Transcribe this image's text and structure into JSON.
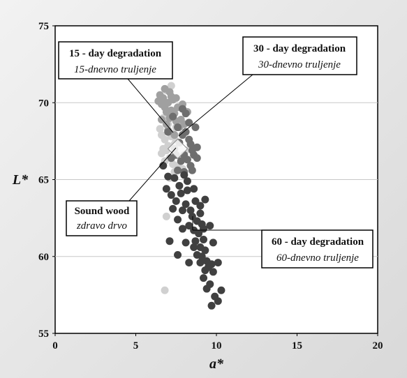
{
  "chart_data": {
    "type": "scatter",
    "xlabel": "a*",
    "ylabel": "L*",
    "xlim": [
      0,
      20
    ],
    "ylim": [
      55,
      75
    ],
    "xticks": [
      "0",
      "5",
      "10",
      "15",
      "20"
    ],
    "yticks": [
      "55",
      "60",
      "65",
      "70",
      "75"
    ],
    "grid": "horizontal",
    "series": [
      {
        "color": "#d0d0d0",
        "points": [
          [
            6.8,
            67.6
          ],
          [
            7.0,
            67.2
          ],
          [
            7.3,
            68.0
          ],
          [
            6.6,
            67.9
          ],
          [
            7.5,
            67.5
          ],
          [
            6.9,
            66.9
          ],
          [
            7.1,
            66.4
          ],
          [
            7.4,
            65.5
          ],
          [
            6.7,
            67.0
          ],
          [
            7.6,
            66.8
          ],
          [
            7.2,
            67.8
          ],
          [
            6.5,
            68.3
          ],
          [
            7.8,
            66.6
          ],
          [
            7.0,
            68.6
          ],
          [
            7.7,
            67.1
          ],
          [
            6.8,
            66.2
          ],
          [
            7.9,
            65.7
          ],
          [
            7.3,
            66.0
          ],
          [
            6.6,
            66.7
          ],
          [
            7.5,
            68.4
          ],
          [
            8.1,
            66.9
          ],
          [
            6.9,
            62.6
          ],
          [
            6.8,
            57.8
          ],
          [
            7.1,
            65.1
          ],
          [
            7.4,
            67.3
          ],
          [
            6.7,
            69.0
          ],
          [
            7.2,
            71.1
          ],
          [
            6.9,
            70.8
          ],
          [
            7.6,
            65.9
          ],
          [
            8.0,
            66.4
          ]
        ]
      },
      {
        "color": "#a0a0a0",
        "points": [
          [
            6.5,
            70.5
          ],
          [
            6.7,
            70.3
          ],
          [
            7.0,
            70.0
          ],
          [
            7.2,
            69.5
          ],
          [
            6.8,
            69.7
          ],
          [
            7.4,
            69.3
          ],
          [
            6.6,
            69.9
          ],
          [
            7.1,
            69.0
          ],
          [
            7.5,
            68.8
          ],
          [
            6.9,
            68.6
          ],
          [
            7.3,
            70.2
          ],
          [
            7.6,
            69.7
          ],
          [
            7.8,
            68.9
          ],
          [
            6.4,
            70.1
          ],
          [
            7.0,
            68.2
          ],
          [
            7.7,
            68.4
          ],
          [
            7.2,
            70.4
          ],
          [
            6.6,
            68.9
          ],
          [
            8.0,
            68.6
          ],
          [
            7.9,
            69.9
          ],
          [
            7.4,
            67.9
          ],
          [
            6.8,
            70.9
          ],
          [
            7.1,
            70.7
          ],
          [
            8.2,
            69.4
          ],
          [
            7.5,
            70.3
          ],
          [
            6.9,
            69.4
          ]
        ]
      },
      {
        "color": "#6e6e6e",
        "points": [
          [
            7.3,
            69.1
          ],
          [
            7.6,
            68.4
          ],
          [
            7.9,
            67.9
          ],
          [
            8.1,
            68.1
          ],
          [
            7.7,
            67.4
          ],
          [
            8.3,
            67.6
          ],
          [
            7.4,
            67.0
          ],
          [
            8.0,
            66.6
          ],
          [
            8.5,
            66.9
          ],
          [
            7.8,
            66.2
          ],
          [
            8.2,
            66.3
          ],
          [
            8.6,
            66.6
          ],
          [
            7.5,
            66.6
          ],
          [
            8.4,
            67.3
          ],
          [
            8.8,
            67.1
          ],
          [
            8.0,
            65.5
          ],
          [
            8.4,
            65.9
          ],
          [
            7.2,
            66.4
          ],
          [
            8.7,
            68.4
          ],
          [
            8.3,
            68.7
          ],
          [
            8.1,
            69.3
          ],
          [
            7.9,
            69.6
          ],
          [
            7.0,
            68.1
          ],
          [
            8.8,
            66.4
          ],
          [
            7.6,
            65.6
          ],
          [
            8.5,
            65.6
          ]
        ]
      },
      {
        "color": "#404040",
        "points": [
          [
            6.9,
            64.4
          ],
          [
            7.2,
            64.0
          ],
          [
            7.5,
            63.6
          ],
          [
            7.8,
            64.1
          ],
          [
            8.1,
            63.4
          ],
          [
            8.4,
            63.0
          ],
          [
            8.7,
            63.6
          ],
          [
            9.0,
            63.3
          ],
          [
            8.5,
            62.6
          ],
          [
            8.8,
            62.3
          ],
          [
            9.1,
            62.1
          ],
          [
            8.6,
            61.7
          ],
          [
            8.9,
            61.5
          ],
          [
            9.2,
            61.1
          ],
          [
            8.7,
            61.0
          ],
          [
            9.0,
            60.6
          ],
          [
            9.3,
            60.4
          ],
          [
            8.8,
            60.1
          ],
          [
            9.1,
            60.0
          ],
          [
            9.4,
            59.7
          ],
          [
            9.7,
            59.5
          ],
          [
            9.5,
            59.3
          ],
          [
            9.0,
            59.6
          ],
          [
            9.3,
            59.1
          ],
          [
            9.8,
            59.0
          ],
          [
            10.1,
            59.6
          ],
          [
            9.2,
            58.6
          ],
          [
            9.6,
            58.2
          ],
          [
            9.4,
            57.9
          ],
          [
            9.9,
            57.4
          ],
          [
            10.3,
            57.8
          ],
          [
            10.1,
            57.1
          ],
          [
            9.7,
            56.8
          ],
          [
            7.7,
            64.6
          ],
          [
            8.2,
            64.9
          ],
          [
            8.0,
            65.3
          ],
          [
            7.4,
            65.1
          ],
          [
            8.6,
            64.4
          ],
          [
            9.3,
            63.7
          ],
          [
            9.0,
            62.8
          ],
          [
            8.3,
            62.0
          ],
          [
            7.6,
            62.4
          ],
          [
            7.9,
            61.8
          ],
          [
            8.6,
            60.6
          ],
          [
            8.1,
            60.9
          ],
          [
            7.1,
            61.0
          ],
          [
            7.6,
            60.1
          ],
          [
            8.3,
            59.6
          ],
          [
            9.6,
            62.0
          ],
          [
            9.2,
            61.8
          ],
          [
            7.3,
            63.1
          ],
          [
            7.9,
            63.0
          ],
          [
            8.2,
            64.3
          ],
          [
            6.7,
            65.9
          ],
          [
            7.0,
            65.2
          ],
          [
            9.8,
            60.9
          ]
        ]
      }
    ],
    "centroid_marker": {
      "x": 7.6,
      "y": 67.0
    },
    "annotations": [
      {
        "title": "15 - day degradation",
        "subtitle": "15-dnevno truljenje",
        "point": {
          "x": 7.6,
          "y": 67.6
        }
      },
      {
        "title": "30 - day degradation",
        "subtitle": "30-dnevno truljenje",
        "point": {
          "x": 7.8,
          "y": 67.1
        }
      },
      {
        "title": "Sound wood",
        "subtitle": "zdravo drvo",
        "point": {
          "x": 7.4,
          "y": 66.9
        }
      },
      {
        "title": "60 - day degradation",
        "subtitle": "60-dnevno truljenje",
        "point": {
          "x": 8.9,
          "y": 62.2
        }
      }
    ]
  }
}
